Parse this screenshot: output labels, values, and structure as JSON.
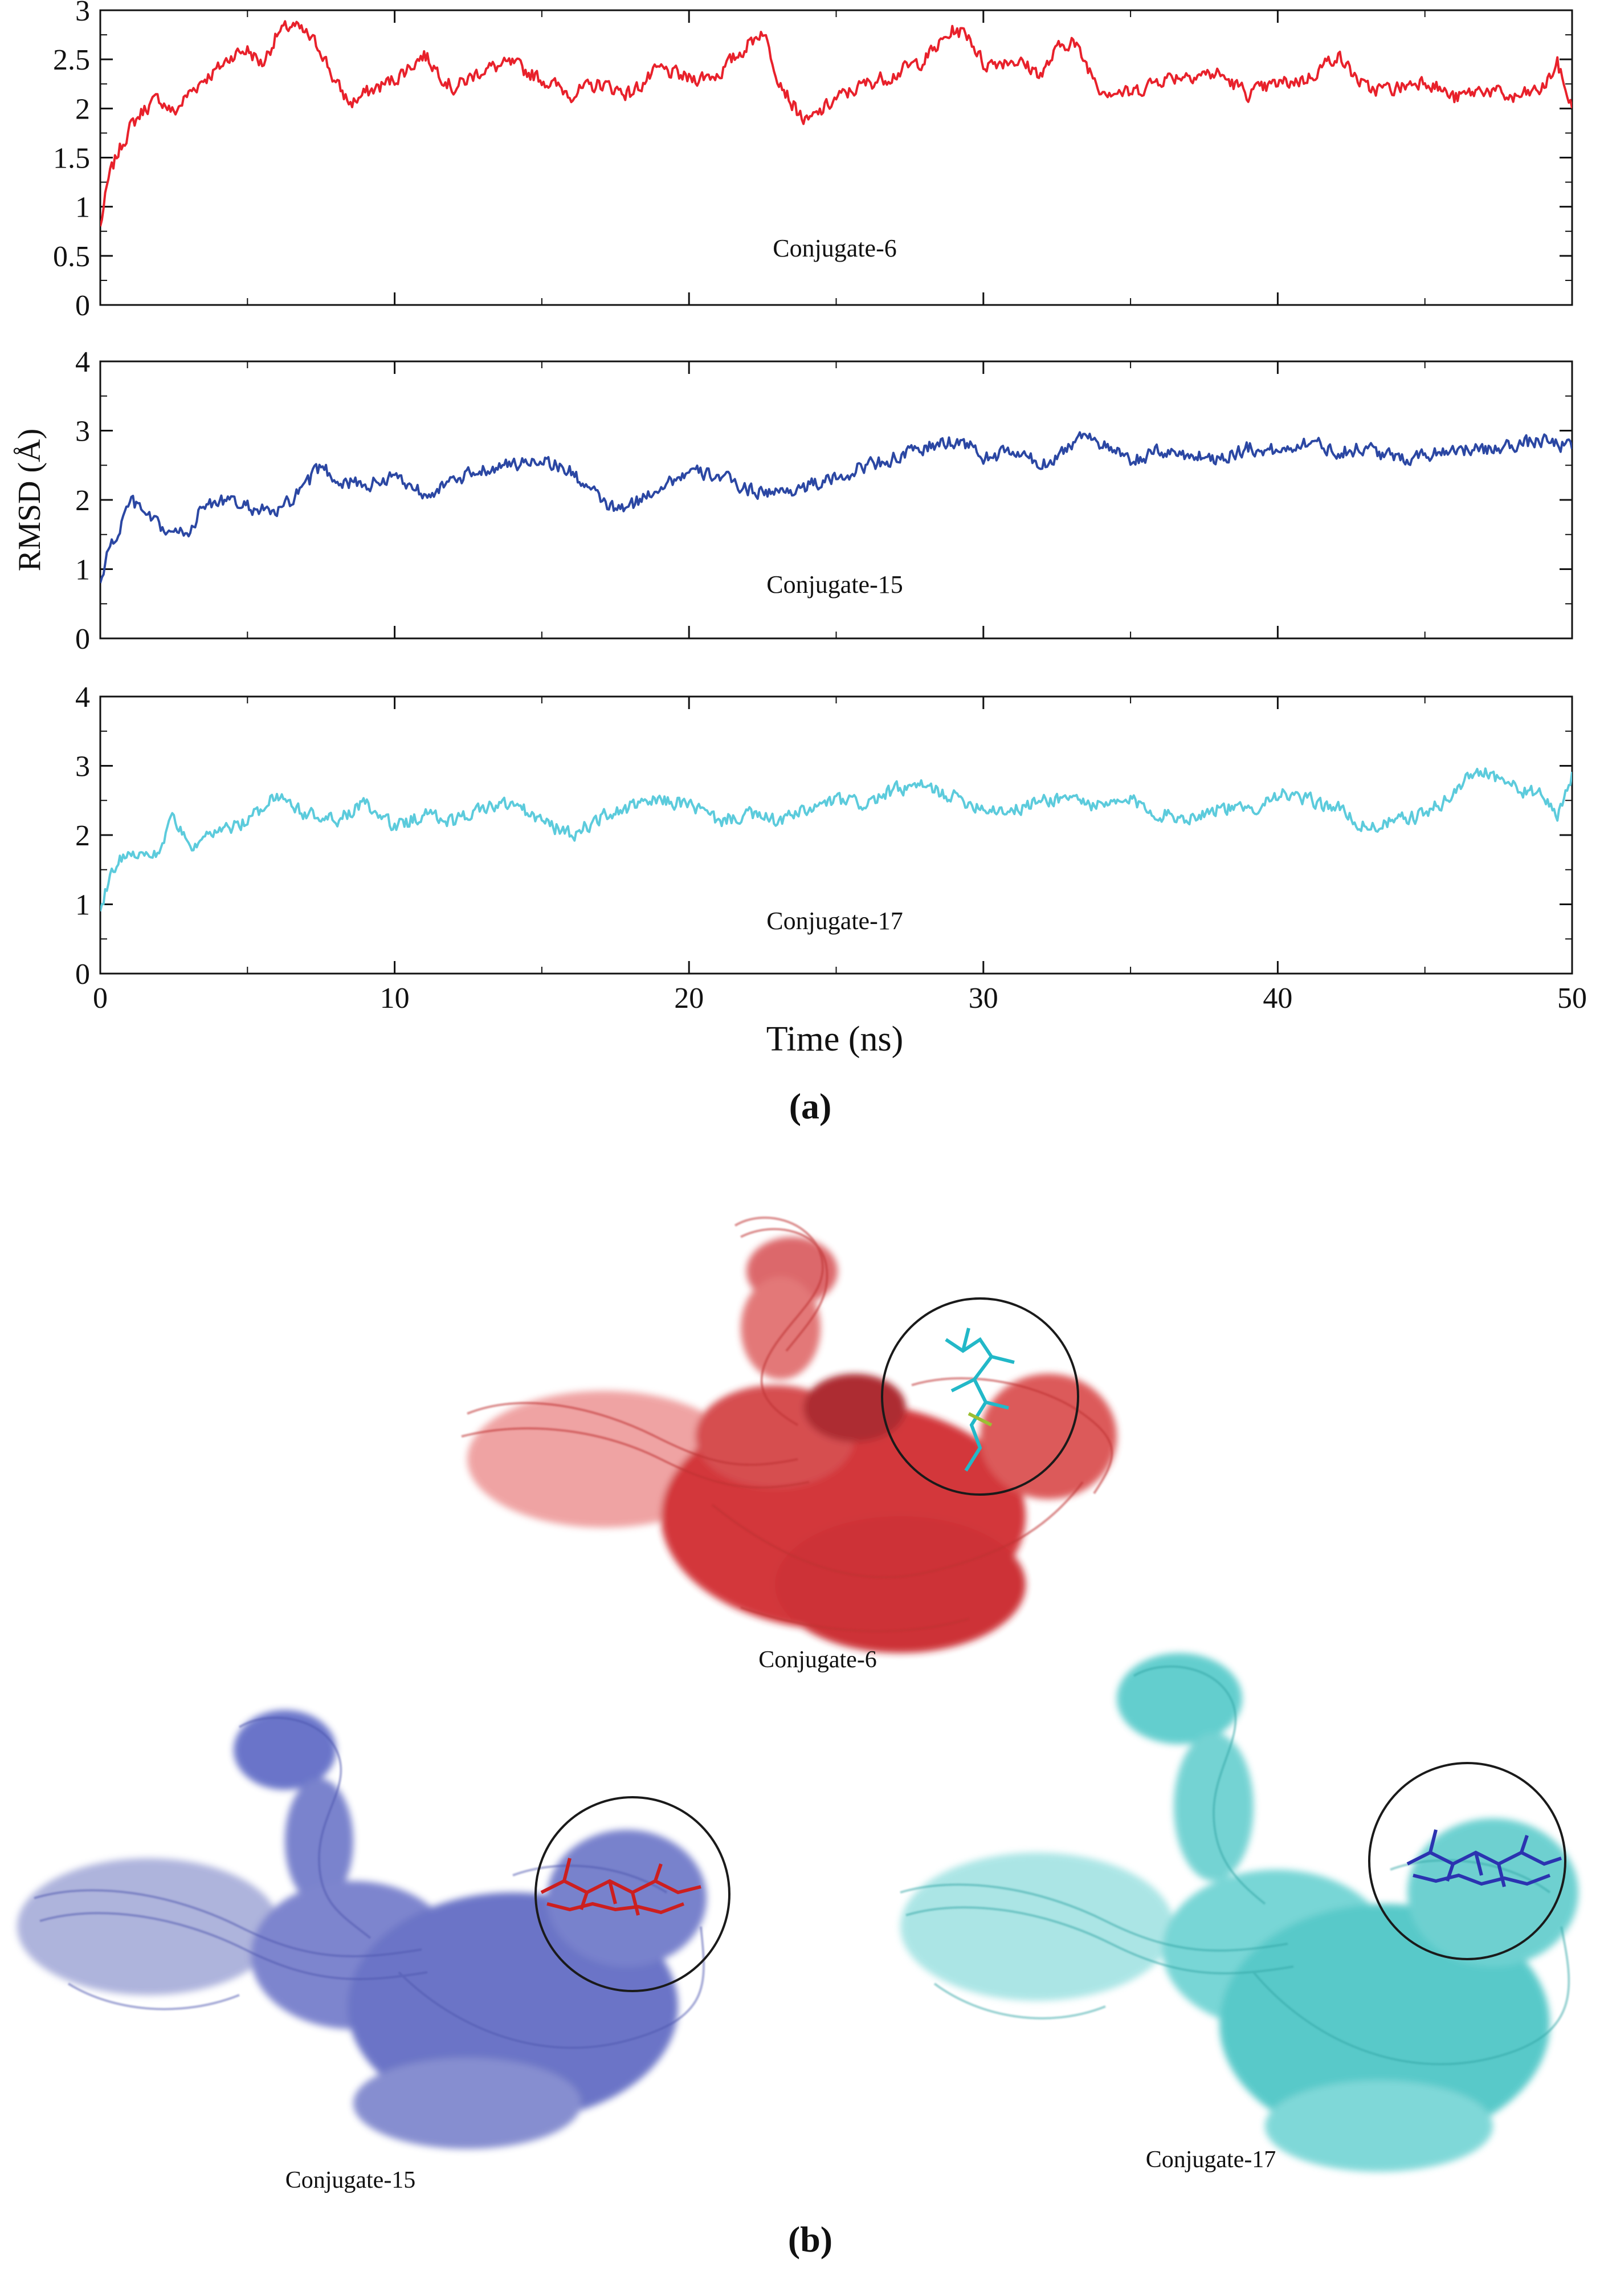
{
  "figure": {
    "panel_a_label": "(a)",
    "panel_b_label": "(b)",
    "x_axis_label": "Time (ns)",
    "y_axis_label": "RMSD (Å)"
  },
  "structures": [
    {
      "label": "Conjugate-6",
      "protein_color": "#d62828",
      "ligand_color": "#22b8c8"
    },
    {
      "label": "Conjugate-15",
      "protein_color": "#5560c0",
      "ligand_color": "#cc1f1f"
    },
    {
      "label": "Conjugate-17",
      "protein_color": "#3fc7c7",
      "ligand_color": "#2b33b0"
    }
  ],
  "chart_data": [
    {
      "type": "line",
      "title": "Conjugate-6",
      "xlabel": "Time (ns)",
      "ylabel": "",
      "xlim": [
        0,
        50
      ],
      "ylim": [
        0,
        3
      ],
      "yticks": [
        0,
        0.5,
        1,
        1.5,
        2,
        2.5,
        3
      ],
      "xticks": [
        0,
        10,
        20,
        30,
        40,
        50
      ],
      "color": "#e8212b",
      "series": [
        {
          "name": "Conjugate-6",
          "x": [
            0,
            0.3,
            0.6,
            1,
            1.5,
            2,
            2.5,
            3,
            3.5,
            4,
            4.5,
            5,
            5.5,
            6,
            6.5,
            7,
            7.5,
            8,
            8.5,
            9,
            10,
            11,
            12,
            13,
            14,
            15,
            16,
            17,
            18,
            19,
            20,
            21,
            22,
            22.5,
            23,
            23.5,
            24,
            25,
            26,
            27,
            28,
            29,
            29.5,
            30,
            31,
            32,
            32.5,
            33,
            34,
            35,
            36,
            37,
            38,
            39,
            40,
            41,
            42,
            43,
            44,
            45,
            46,
            47,
            48,
            49,
            49.5,
            50
          ],
          "y": [
            0.8,
            1.3,
            1.55,
            1.8,
            2.0,
            2.1,
            1.95,
            2.15,
            2.3,
            2.4,
            2.55,
            2.6,
            2.45,
            2.75,
            2.85,
            2.75,
            2.6,
            2.25,
            2.05,
            2.15,
            2.3,
            2.55,
            2.2,
            2.4,
            2.45,
            2.3,
            2.15,
            2.25,
            2.15,
            2.4,
            2.3,
            2.35,
            2.65,
            2.8,
            2.35,
            2.05,
            1.85,
            2.1,
            2.25,
            2.35,
            2.5,
            2.8,
            2.75,
            2.45,
            2.5,
            2.35,
            2.6,
            2.7,
            2.2,
            2.15,
            2.3,
            2.35,
            2.35,
            2.15,
            2.25,
            2.3,
            2.55,
            2.2,
            2.2,
            2.3,
            2.1,
            2.2,
            2.1,
            2.2,
            2.45,
            2.0
          ]
        }
      ]
    },
    {
      "type": "line",
      "title": "Conjugate-15",
      "xlabel": "Time (ns)",
      "ylabel": "RMSD (Å)",
      "xlim": [
        0,
        50
      ],
      "ylim": [
        0,
        4
      ],
      "yticks": [
        0,
        1,
        2,
        3,
        4
      ],
      "xticks": [
        0,
        10,
        20,
        30,
        40,
        50
      ],
      "color": "#2b47a3",
      "series": [
        {
          "name": "Conjugate-15",
          "x": [
            0,
            0.3,
            0.6,
            1,
            1.5,
            2,
            2.5,
            3,
            3.5,
            4,
            5,
            6,
            7,
            7.5,
            8,
            9,
            10,
            11,
            12,
            13,
            14,
            15,
            16,
            17,
            17.5,
            18,
            19,
            20,
            21,
            22,
            23,
            24,
            25,
            26,
            27,
            28,
            29,
            29.5,
            30,
            31,
            32,
            33,
            33.5,
            34,
            35,
            36,
            37,
            38,
            39,
            40,
            41,
            42,
            43,
            44,
            45,
            46,
            47,
            48,
            49,
            50
          ],
          "y": [
            0.8,
            1.3,
            1.5,
            2.0,
            1.8,
            1.6,
            1.5,
            1.55,
            1.9,
            2.0,
            1.9,
            1.8,
            2.2,
            2.5,
            2.3,
            2.2,
            2.35,
            2.1,
            2.25,
            2.45,
            2.5,
            2.6,
            2.4,
            2.0,
            1.85,
            1.9,
            2.2,
            2.4,
            2.35,
            2.15,
            2.1,
            2.2,
            2.3,
            2.5,
            2.6,
            2.75,
            2.85,
            2.8,
            2.6,
            2.7,
            2.5,
            2.8,
            3.0,
            2.8,
            2.55,
            2.7,
            2.65,
            2.6,
            2.75,
            2.7,
            2.85,
            2.7,
            2.75,
            2.6,
            2.65,
            2.75,
            2.7,
            2.8,
            2.85,
            2.75
          ]
        }
      ]
    },
    {
      "type": "line",
      "title": "Conjugate-17",
      "xlabel": "Time (ns)",
      "ylabel": "",
      "xlim": [
        0,
        50
      ],
      "ylim": [
        0,
        4
      ],
      "yticks": [
        0,
        1,
        2,
        3,
        4
      ],
      "xticks": [
        0,
        10,
        20,
        30,
        40,
        50
      ],
      "color": "#5ccbdc",
      "series": [
        {
          "name": "Conjugate-17",
          "x": [
            0,
            0.3,
            0.6,
            1,
            1.5,
            2,
            2.5,
            3,
            3.5,
            4,
            5,
            6,
            7,
            8,
            9,
            10,
            11,
            12,
            13,
            14,
            15,
            16,
            17,
            18,
            19,
            20,
            21,
            22,
            23,
            24,
            25,
            26,
            27,
            28,
            29,
            30,
            31,
            32,
            33,
            34,
            35,
            36,
            37,
            38,
            39,
            40,
            41,
            42,
            43,
            44,
            45,
            46,
            46.5,
            47,
            48,
            49,
            49.5,
            50
          ],
          "y": [
            0.9,
            1.4,
            1.6,
            1.8,
            1.7,
            1.75,
            2.3,
            1.8,
            1.9,
            2.05,
            2.2,
            2.6,
            2.3,
            2.2,
            2.45,
            2.1,
            2.3,
            2.2,
            2.4,
            2.45,
            2.2,
            2.0,
            2.25,
            2.4,
            2.5,
            2.45,
            2.2,
            2.3,
            2.2,
            2.35,
            2.5,
            2.45,
            2.65,
            2.7,
            2.55,
            2.4,
            2.35,
            2.5,
            2.55,
            2.4,
            2.5,
            2.3,
            2.25,
            2.4,
            2.35,
            2.6,
            2.5,
            2.4,
            2.1,
            2.2,
            2.3,
            2.6,
            2.85,
            2.95,
            2.7,
            2.55,
            2.3,
            2.85
          ]
        }
      ]
    }
  ]
}
